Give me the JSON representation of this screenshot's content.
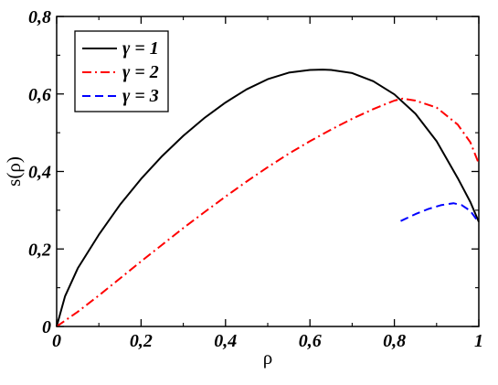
{
  "chart_data": {
    "type": "line",
    "xlabel": "ρ",
    "ylabel": "s(ρ)",
    "xlim": [
      0,
      1
    ],
    "ylim": [
      0,
      0.8
    ],
    "grid": false,
    "legend_position": "top-left",
    "x_ticks": [
      {
        "value": 0,
        "label": "0"
      },
      {
        "value": 0.2,
        "label": "0,2"
      },
      {
        "value": 0.4,
        "label": "0,4"
      },
      {
        "value": 0.6,
        "label": "0,6"
      },
      {
        "value": 0.8,
        "label": "0,8"
      },
      {
        "value": 1,
        "label": "1"
      }
    ],
    "y_ticks": [
      {
        "value": 0,
        "label": "0"
      },
      {
        "value": 0.2,
        "label": "0,2"
      },
      {
        "value": 0.4,
        "label": "0,4"
      },
      {
        "value": 0.6,
        "label": "0,6"
      },
      {
        "value": 0.8,
        "label": "0,8"
      }
    ],
    "series": [
      {
        "name": "γ = 1",
        "color": "#000000",
        "dash": "solid",
        "x": [
          0,
          0.02,
          0.05,
          0.1,
          0.15,
          0.2,
          0.25,
          0.3,
          0.35,
          0.4,
          0.45,
          0.5,
          0.55,
          0.6,
          0.63,
          0.65,
          0.7,
          0.75,
          0.8,
          0.85,
          0.9,
          0.95,
          0.98,
          1.0
        ],
        "y": [
          0,
          0.078,
          0.15,
          0.237,
          0.314,
          0.381,
          0.44,
          0.492,
          0.538,
          0.578,
          0.612,
          0.638,
          0.655,
          0.662,
          0.663,
          0.662,
          0.654,
          0.633,
          0.599,
          0.549,
          0.478,
          0.383,
          0.321,
          0.27
        ]
      },
      {
        "name": "γ = 2",
        "color": "#ff0000",
        "dash": "dashdot",
        "x": [
          0,
          0.05,
          0.1,
          0.15,
          0.2,
          0.25,
          0.3,
          0.35,
          0.4,
          0.45,
          0.5,
          0.55,
          0.6,
          0.65,
          0.7,
          0.75,
          0.8,
          0.82,
          0.85,
          0.9,
          0.95,
          0.98,
          1.0
        ],
        "y": [
          0,
          0.038,
          0.08,
          0.124,
          0.168,
          0.211,
          0.254,
          0.295,
          0.335,
          0.374,
          0.411,
          0.446,
          0.478,
          0.508,
          0.536,
          0.561,
          0.583,
          0.588,
          0.583,
          0.565,
          0.521,
          0.475,
          0.42
        ]
      },
      {
        "name": "γ = 3",
        "color": "#0000ff",
        "dash": "dashed",
        "x": [
          0.815,
          0.85,
          0.88,
          0.91,
          0.94,
          0.96,
          0.98,
          1.0
        ],
        "y": [
          0.272,
          0.29,
          0.303,
          0.313,
          0.318,
          0.313,
          0.298,
          0.268
        ]
      }
    ]
  }
}
